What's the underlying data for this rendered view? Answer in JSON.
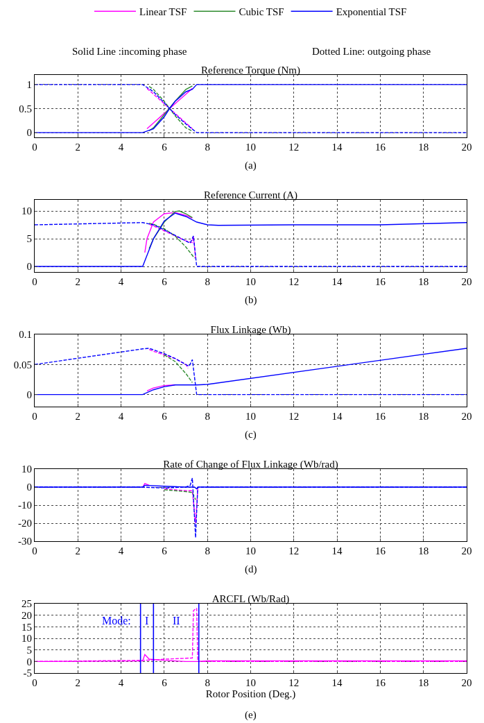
{
  "chart_data": [
    {
      "type": "line",
      "title": "Reference Torque (Nm)",
      "annotations": [
        "Solid Line :incoming phase",
        "Dotted Line: outgoing phase",
        "(a)"
      ],
      "xlim": [
        0,
        20
      ],
      "xticks": [
        0,
        2,
        4,
        6,
        8,
        10,
        12,
        14,
        16,
        18,
        20
      ],
      "ylim": [
        -0.1,
        1.2
      ],
      "yticks": [
        0,
        0.5,
        1
      ],
      "grid": true,
      "legend": "top",
      "series": [
        {
          "name": "Linear TSF",
          "color": "#ff00ff",
          "line_style": "solid",
          "x": [
            5.2,
            5.5,
            6,
            6.5,
            7,
            7.3
          ],
          "values": [
            0.08,
            0.2,
            0.4,
            0.6,
            0.8,
            0.92
          ]
        },
        {
          "color": "#ff00ff",
          "line_style": "dashed",
          "x": [
            5.2,
            5.5,
            6,
            6.5,
            7,
            7.3
          ],
          "values": [
            0.92,
            0.8,
            0.6,
            0.4,
            0.2,
            0.08
          ]
        },
        {
          "name": "Cubic TSF",
          "color": "#2e8b2e",
          "line_style": "solid",
          "x": [
            5.3,
            5.5,
            6.5,
            7,
            7.3
          ],
          "values": [
            0.04,
            0.1,
            0.65,
            0.9,
            0.97
          ]
        },
        {
          "color": "#2e8b2e",
          "line_style": "dashed",
          "x": [
            5.3,
            5.5,
            6,
            6.5,
            7,
            7.3
          ],
          "values": [
            0.96,
            0.9,
            0.65,
            0.35,
            0.1,
            0.03
          ]
        },
        {
          "name": "Exponential TSF",
          "color": "#0000ff",
          "line_style": "solid",
          "x": [
            0,
            5,
            5.5,
            6,
            6.25,
            6.5,
            7,
            7.3,
            7.5,
            20
          ],
          "values": [
            0,
            0,
            0.08,
            0.33,
            0.5,
            0.65,
            0.85,
            0.9,
            1,
            1
          ]
        },
        {
          "color": "#0000ff",
          "line_style": "dashed",
          "x": [
            0,
            5,
            5.5,
            6,
            6.25,
            6.5,
            7,
            7.5,
            20
          ],
          "values": [
            1,
            1,
            0.85,
            0.62,
            0.5,
            0.38,
            0.18,
            0,
            0
          ]
        }
      ]
    },
    {
      "type": "line",
      "title": "Reference Current (A)",
      "annotations": [
        "(b)"
      ],
      "xlim": [
        0,
        20
      ],
      "xticks": [
        0,
        2,
        4,
        6,
        8,
        10,
        12,
        14,
        16,
        18,
        20
      ],
      "ylim": [
        -1,
        12
      ],
      "yticks": [
        0,
        5,
        10
      ],
      "grid": true,
      "series": [
        {
          "color": "#ff00ff",
          "line_style": "solid",
          "x": [
            5.1,
            5.2,
            5.5,
            6,
            6.5,
            7,
            7.3
          ],
          "values": [
            2.5,
            5,
            8,
            9.5,
            9.7,
            9.2,
            8.7
          ]
        },
        {
          "color": "#ff00ff",
          "line_style": "dashed",
          "x": [
            5.3,
            5.5,
            6,
            6.5,
            7,
            7.3,
            7.35,
            7.45
          ],
          "values": [
            7.6,
            7.3,
            6.4,
            5.5,
            4.6,
            4.3,
            5.4,
            1.5
          ]
        },
        {
          "color": "#2e8b2e",
          "line_style": "solid",
          "x": [
            5.3,
            5.5,
            6,
            6.5,
            6.7,
            7,
            7.3
          ],
          "values": [
            3.2,
            5,
            8,
            9.9,
            10,
            9.5,
            8.8
          ]
        },
        {
          "color": "#2e8b2e",
          "line_style": "dashed",
          "x": [
            5.3,
            5.5,
            6,
            6.5,
            7,
            7.4
          ],
          "values": [
            7.8,
            7.6,
            6.8,
            5.5,
            3.5,
            1.5
          ]
        },
        {
          "color": "#0000ff",
          "line_style": "solid",
          "x": [
            0,
            5,
            5.5,
            6,
            6.5,
            7,
            7.5,
            8,
            8.5,
            12,
            16,
            20
          ],
          "values": [
            0,
            0,
            5,
            8.2,
            9.6,
            9,
            8,
            7.5,
            7.4,
            7.5,
            7.5,
            7.9
          ]
        },
        {
          "color": "#0000ff",
          "line_style": "dashed",
          "x": [
            0,
            5,
            5.5,
            6,
            6.5,
            7,
            7.2,
            7.35,
            7.5,
            20
          ],
          "values": [
            7.5,
            7.9,
            7.5,
            6.6,
            5.6,
            4.6,
            4.2,
            5.5,
            0,
            0
          ]
        }
      ]
    },
    {
      "type": "line",
      "title": "Flux Linkage (Wb)",
      "annotations": [
        "(c)"
      ],
      "xlim": [
        0,
        20
      ],
      "xticks": [
        0,
        2,
        4,
        6,
        8,
        10,
        12,
        14,
        16,
        18,
        20
      ],
      "ylim": [
        -0.02,
        0.1
      ],
      "yticks": [
        0,
        0.05,
        0.1
      ],
      "grid": true,
      "series": [
        {
          "color": "#ff00ff",
          "line_style": "solid",
          "x": [
            5.2,
            5.5,
            6,
            6.5
          ],
          "values": [
            0.006,
            0.011,
            0.015,
            0.016
          ]
        },
        {
          "color": "#ff00ff",
          "line_style": "dashed",
          "x": [
            5.3,
            5.5,
            6,
            6.5,
            7,
            7.1
          ],
          "values": [
            0.075,
            0.072,
            0.066,
            0.06,
            0.05,
            0.044
          ]
        },
        {
          "color": "#2e8b2e",
          "line_style": "dashed",
          "x": [
            6,
            6.5,
            7,
            7.3
          ],
          "values": [
            0.066,
            0.055,
            0.035,
            0.02
          ]
        },
        {
          "color": "#0000ff",
          "line_style": "solid",
          "x": [
            0,
            5,
            5.5,
            6,
            6.5,
            7,
            7.5,
            8,
            20
          ],
          "values": [
            0,
            0,
            0.008,
            0.013,
            0.016,
            0.016,
            0.016,
            0.017,
            0.077
          ]
        },
        {
          "color": "#0000ff",
          "line_style": "dashed",
          "x": [
            0,
            5,
            5.3,
            6,
            6.5,
            7,
            7.15,
            7.3,
            7.5,
            20
          ],
          "values": [
            0.05,
            0.076,
            0.077,
            0.068,
            0.06,
            0.05,
            0.047,
            0.058,
            0,
            0
          ]
        }
      ]
    },
    {
      "type": "line",
      "title": "Rate of Change of Flux Linkage (Wb/rad)",
      "annotations": [
        "(d)"
      ],
      "xlim": [
        0,
        20
      ],
      "xticks": [
        0,
        2,
        4,
        6,
        8,
        10,
        12,
        14,
        16,
        18,
        20
      ],
      "ylim": [
        -30,
        10
      ],
      "yticks": [
        10,
        0,
        -10,
        -20,
        -30
      ],
      "grid": true,
      "series": [
        {
          "color": "#ff00ff",
          "line_style": "solid",
          "x": [
            5,
            5.1,
            5.3
          ],
          "values": [
            0,
            2,
            1
          ]
        },
        {
          "color": "#ff00ff",
          "line_style": "dashed",
          "x": [
            6,
            7,
            7.3,
            7.45,
            7.55
          ],
          "values": [
            -1,
            -2,
            -2,
            -20,
            -1
          ]
        },
        {
          "color": "#2e8b2e",
          "line_style": "dashed",
          "x": [
            6,
            7,
            7.3,
            7.45
          ],
          "values": [
            -1.5,
            -2.5,
            -3,
            -7
          ]
        },
        {
          "color": "#0000ff",
          "line_style": "solid",
          "x": [
            0,
            5,
            5.1,
            6,
            7,
            7.4,
            7.5,
            7.6,
            20
          ],
          "values": [
            0,
            0,
            1,
            0.5,
            0,
            0,
            -1,
            0,
            0
          ]
        },
        {
          "color": "#0000ff",
          "line_style": "dashed",
          "x": [
            0,
            5,
            6,
            7,
            7.2,
            7.3,
            7.45,
            7.55,
            20
          ],
          "values": [
            0,
            0,
            -0.5,
            0,
            1,
            5,
            -28,
            0,
            0
          ]
        }
      ]
    },
    {
      "type": "line",
      "title": "ARCFL (Wb/Rad)",
      "xlabel": "Rotor Position (Deg.)",
      "annotations": [
        "Mode:",
        "I",
        "II",
        "(e)"
      ],
      "xlim": [
        0,
        20
      ],
      "xticks": [
        0,
        2,
        4,
        6,
        8,
        10,
        12,
        14,
        16,
        18,
        20
      ],
      "ylim": [
        -5,
        25
      ],
      "yticks": [
        25,
        20,
        15,
        10,
        5,
        0,
        -5
      ],
      "grid": true,
      "ref_lines": [
        {
          "axis": "x",
          "value": 4.9,
          "color": "#0000ff"
        },
        {
          "axis": "x",
          "value": 5.5,
          "color": "#0000ff"
        },
        {
          "axis": "x",
          "value": 7.6,
          "color": "#0000ff"
        }
      ],
      "series": [
        {
          "color": "#ff00ff",
          "line_style": "solid",
          "x": [
            0,
            5,
            5.1,
            5.3,
            6,
            7,
            7.5,
            8,
            20
          ],
          "values": [
            0,
            0.2,
            3,
            1,
            0.5,
            0,
            0,
            0.3,
            0.3
          ]
        },
        {
          "color": "#ff00ff",
          "line_style": "dashed",
          "x": [
            0,
            5,
            5.5,
            6,
            7.3,
            7.35,
            7.5,
            7.55,
            20
          ],
          "values": [
            0,
            0.5,
            0.6,
            1,
            1.5,
            22,
            23,
            0,
            0
          ]
        }
      ]
    }
  ]
}
